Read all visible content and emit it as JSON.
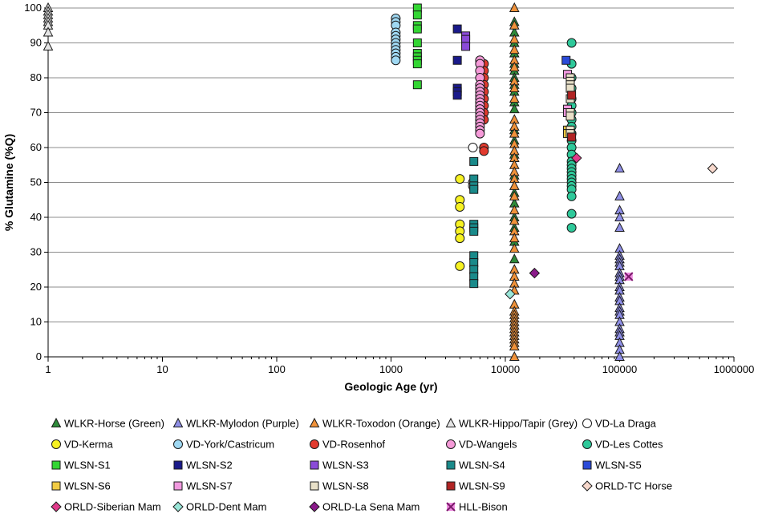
{
  "chart_data": {
    "type": "scatter",
    "xlabel": "Geologic Age (yr)",
    "ylabel": "% Glutamine (%Q)",
    "xscale": "log",
    "xlim": [
      1,
      1000000
    ],
    "ylim": [
      0,
      100
    ],
    "x_ticks": [
      "1",
      "10",
      "100",
      "1000",
      "10000",
      "100000",
      "1000000"
    ],
    "y_ticks": [
      "0",
      "10",
      "20",
      "30",
      "40",
      "50",
      "60",
      "70",
      "80",
      "90",
      "100"
    ],
    "grid": "horizontal",
    "legend_position": "bottom",
    "series": [
      {
        "name": "WLKR-Horse (Green)",
        "marker": "triangle",
        "color": "#2e8b3a",
        "points": [
          [
            12000,
            96
          ],
          [
            12000,
            93
          ],
          [
            12000,
            90
          ],
          [
            12000,
            87
          ],
          [
            12000,
            84
          ],
          [
            12000,
            82
          ],
          [
            12000,
            80
          ],
          [
            12000,
            78
          ],
          [
            12000,
            76
          ],
          [
            12000,
            73
          ],
          [
            12000,
            71
          ],
          [
            12000,
            65
          ],
          [
            12000,
            62
          ],
          [
            12000,
            58
          ],
          [
            12000,
            52
          ],
          [
            12000,
            47
          ],
          [
            12000,
            44
          ],
          [
            12000,
            40
          ],
          [
            12000,
            37
          ],
          [
            12000,
            33
          ],
          [
            12000,
            28
          ]
        ]
      },
      {
        "name": "WLKR-Mylodon (Purple)",
        "marker": "triangle",
        "color": "#8f8fe6",
        "points": [
          [
            100000,
            54
          ],
          [
            100000,
            46
          ],
          [
            100000,
            42
          ],
          [
            100000,
            40
          ],
          [
            100000,
            37
          ],
          [
            100000,
            31
          ],
          [
            100000,
            29
          ],
          [
            100000,
            28
          ],
          [
            100000,
            27
          ],
          [
            100000,
            26
          ],
          [
            100000,
            24
          ],
          [
            100000,
            23
          ],
          [
            100000,
            22
          ],
          [
            100000,
            20
          ],
          [
            100000,
            19
          ],
          [
            100000,
            17
          ],
          [
            100000,
            16
          ],
          [
            100000,
            14
          ],
          [
            100000,
            13
          ],
          [
            100000,
            12
          ],
          [
            100000,
            10
          ],
          [
            100000,
            8
          ],
          [
            100000,
            7
          ],
          [
            100000,
            6
          ],
          [
            100000,
            4
          ],
          [
            100000,
            2
          ],
          [
            100000,
            0
          ]
        ]
      },
      {
        "name": "WLKR-Toxodon (Orange)",
        "marker": "triangle",
        "color": "#f0923a",
        "points": [
          [
            12000,
            100
          ],
          [
            12000,
            95
          ],
          [
            12000,
            91
          ],
          [
            12000,
            88
          ],
          [
            12000,
            85
          ],
          [
            12000,
            83
          ],
          [
            12000,
            79
          ],
          [
            12000,
            77
          ],
          [
            12000,
            74
          ],
          [
            12000,
            68
          ],
          [
            12000,
            66
          ],
          [
            12000,
            64
          ],
          [
            12000,
            61
          ],
          [
            12000,
            59
          ],
          [
            12000,
            57
          ],
          [
            12000,
            55
          ],
          [
            12000,
            53
          ],
          [
            12000,
            51
          ],
          [
            12000,
            49
          ],
          [
            12000,
            46
          ],
          [
            12000,
            42
          ],
          [
            12000,
            39
          ],
          [
            12000,
            36
          ],
          [
            12000,
            34
          ],
          [
            12000,
            31
          ],
          [
            12000,
            25
          ],
          [
            12000,
            23
          ],
          [
            12000,
            21
          ],
          [
            12000,
            19
          ],
          [
            12000,
            15
          ],
          [
            12000,
            13
          ],
          [
            12000,
            12
          ],
          [
            12000,
            11
          ],
          [
            12000,
            10
          ],
          [
            12000,
            9
          ],
          [
            12000,
            8
          ],
          [
            12000,
            7
          ],
          [
            12000,
            6
          ],
          [
            12000,
            5
          ],
          [
            12000,
            4
          ],
          [
            12000,
            3
          ],
          [
            12000,
            0
          ]
        ]
      },
      {
        "name": "WLKR-Hippo/Tapir (Grey)",
        "marker": "triangle",
        "color": "#e5e5e5",
        "points": [
          [
            1,
            100
          ],
          [
            1,
            99
          ],
          [
            1,
            98
          ],
          [
            1,
            97
          ],
          [
            1,
            96
          ],
          [
            1,
            95
          ],
          [
            1,
            93
          ],
          [
            1,
            89
          ]
        ]
      },
      {
        "name": "VD-La Draga",
        "marker": "circle",
        "color": "#ffffff",
        "points": [
          [
            5200,
            60
          ],
          [
            5200,
            50
          ],
          [
            5200,
            49
          ]
        ]
      },
      {
        "name": "VD-Kerma",
        "marker": "circle",
        "color": "#f7f222",
        "points": [
          [
            4000,
            51
          ],
          [
            4000,
            45
          ],
          [
            4000,
            43
          ],
          [
            4000,
            38
          ],
          [
            4000,
            36
          ],
          [
            4000,
            34
          ],
          [
            4000,
            26
          ]
        ]
      },
      {
        "name": "VD-York/Castricum",
        "marker": "circle",
        "color": "#9fd8f2",
        "points": [
          [
            1100,
            97
          ],
          [
            1100,
            96
          ],
          [
            1100,
            95
          ],
          [
            1100,
            93
          ],
          [
            1100,
            92
          ],
          [
            1100,
            91
          ],
          [
            1100,
            90
          ],
          [
            1100,
            89
          ],
          [
            1100,
            88
          ],
          [
            1100,
            87
          ],
          [
            1100,
            86
          ],
          [
            1100,
            85
          ]
        ]
      },
      {
        "name": "VD-Rosenhof",
        "marker": "circle",
        "color": "#e23a2e",
        "points": [
          [
            6500,
            84
          ],
          [
            6500,
            82
          ],
          [
            6500,
            80
          ],
          [
            6500,
            78
          ],
          [
            6500,
            76
          ],
          [
            6500,
            74
          ],
          [
            6500,
            72
          ],
          [
            6500,
            70
          ],
          [
            6500,
            68
          ],
          [
            6500,
            60
          ],
          [
            6500,
            59
          ]
        ]
      },
      {
        "name": "VD-Wangels",
        "marker": "circle",
        "color": "#f59ad8",
        "points": [
          [
            6000,
            85
          ],
          [
            6000,
            84
          ],
          [
            6000,
            82
          ],
          [
            6000,
            80
          ],
          [
            6000,
            78
          ],
          [
            6000,
            77
          ],
          [
            6000,
            76
          ],
          [
            6000,
            75
          ],
          [
            6000,
            74
          ],
          [
            6000,
            73
          ],
          [
            6000,
            72
          ],
          [
            6000,
            71
          ],
          [
            6000,
            70
          ],
          [
            6000,
            69
          ],
          [
            6000,
            68
          ],
          [
            6000,
            67
          ],
          [
            6000,
            66
          ],
          [
            6000,
            65
          ],
          [
            6000,
            64
          ]
        ]
      },
      {
        "name": "VD-Les Cottes",
        "marker": "circle",
        "color": "#2ec99a",
        "points": [
          [
            38000,
            90
          ],
          [
            38000,
            84
          ],
          [
            38000,
            80
          ],
          [
            38000,
            77
          ],
          [
            38000,
            74
          ],
          [
            38000,
            72
          ],
          [
            38000,
            70
          ],
          [
            38000,
            68
          ],
          [
            38000,
            66
          ],
          [
            38000,
            64
          ],
          [
            38000,
            62
          ],
          [
            38000,
            60
          ],
          [
            38000,
            58
          ],
          [
            38000,
            56
          ],
          [
            38000,
            55
          ],
          [
            38000,
            54
          ],
          [
            38000,
            53
          ],
          [
            38000,
            52
          ],
          [
            38000,
            51
          ],
          [
            38000,
            50
          ],
          [
            38000,
            49
          ],
          [
            38000,
            48
          ],
          [
            38000,
            46
          ],
          [
            38000,
            41
          ],
          [
            38000,
            37
          ]
        ]
      },
      {
        "name": "WLSN-S1",
        "marker": "square",
        "color": "#33d633",
        "points": [
          [
            1700,
            100
          ],
          [
            1700,
            98
          ],
          [
            1700,
            95
          ],
          [
            1700,
            94
          ],
          [
            1700,
            90
          ],
          [
            1700,
            87
          ],
          [
            1700,
            86
          ],
          [
            1700,
            85
          ],
          [
            1700,
            84
          ],
          [
            1700,
            78
          ]
        ]
      },
      {
        "name": "WLSN-S2",
        "marker": "square",
        "color": "#1a1a8a",
        "points": [
          [
            3800,
            94
          ],
          [
            3800,
            85
          ],
          [
            3800,
            77
          ],
          [
            3800,
            76
          ],
          [
            3800,
            75
          ]
        ]
      },
      {
        "name": "WLSN-S3",
        "marker": "square",
        "color": "#8a4ad8",
        "points": [
          [
            4500,
            92
          ],
          [
            4500,
            91
          ],
          [
            4500,
            89
          ]
        ]
      },
      {
        "name": "WLSN-S4",
        "marker": "square",
        "color": "#1a8a8a",
        "points": [
          [
            5300,
            56
          ],
          [
            5300,
            51
          ],
          [
            5300,
            49
          ],
          [
            5300,
            48
          ],
          [
            5300,
            38
          ],
          [
            5300,
            37
          ],
          [
            5300,
            36
          ],
          [
            5300,
            29
          ],
          [
            5300,
            27
          ],
          [
            5300,
            25
          ],
          [
            5300,
            23
          ],
          [
            5300,
            21
          ]
        ]
      },
      {
        "name": "WLSN-S5",
        "marker": "square",
        "color": "#2a4ad8",
        "points": [
          [
            34000,
            85
          ]
        ]
      },
      {
        "name": "WLSN-S6",
        "marker": "square",
        "color": "#f2cc44",
        "points": [
          [
            35000,
            65
          ],
          [
            35000,
            64
          ]
        ]
      },
      {
        "name": "WLSN-S7",
        "marker": "square",
        "color": "#f29ae0",
        "points": [
          [
            35000,
            81
          ],
          [
            35000,
            71
          ],
          [
            35000,
            70
          ]
        ]
      },
      {
        "name": "WLSN-S8",
        "marker": "square",
        "color": "#e8e0c8",
        "points": [
          [
            37000,
            80
          ],
          [
            37000,
            79
          ],
          [
            37000,
            78
          ],
          [
            37000,
            77
          ],
          [
            37000,
            74
          ],
          [
            37000,
            70
          ],
          [
            37000,
            69
          ],
          [
            37000,
            65
          ],
          [
            37000,
            64
          ]
        ]
      },
      {
        "name": "WLSN-S9",
        "marker": "square",
        "color": "#b02424",
        "points": [
          [
            38000,
            75
          ],
          [
            38000,
            63
          ]
        ]
      },
      {
        "name": "ORLD-TC Horse",
        "marker": "diamond",
        "color": "#f7d8cc",
        "points": [
          [
            650000,
            54
          ]
        ]
      },
      {
        "name": "ORLD-Siberian Mam",
        "marker": "diamond",
        "color": "#e03a8a",
        "points": [
          [
            42000,
            57
          ]
        ]
      },
      {
        "name": "ORLD-Dent Mam",
        "marker": "diamond",
        "color": "#9ae6d8",
        "points": [
          [
            11000,
            18
          ]
        ]
      },
      {
        "name": "ORLD-La Sena Mam",
        "marker": "diamond",
        "color": "#8a1a8a",
        "points": [
          [
            18000,
            24
          ]
        ]
      },
      {
        "name": "HLL-Bison",
        "marker": "xsquare",
        "color": "#e03ac8",
        "points": [
          [
            120000,
            23
          ]
        ]
      }
    ]
  }
}
